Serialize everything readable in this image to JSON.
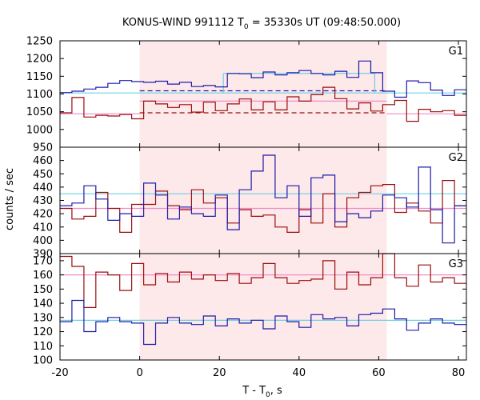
{
  "chart_data": {
    "type": "line",
    "title_main": "KONUS-WIND 991112 T",
    "title_sub": "0",
    "title_rest": " = 35330s UT (09:48:50.000)",
    "xlabel_main": "T - T",
    "xlabel_sub": "0",
    "xlabel_rest": ", s",
    "ylabel": "counts / sec",
    "xlim": [
      -20,
      82
    ],
    "xticks": [
      "-20",
      "0",
      "20",
      "40",
      "60",
      "80"
    ],
    "shade_range": [
      0,
      62
    ],
    "colors": {
      "blue": "#1c1ca8",
      "red": "#9b0d0d",
      "cyan": "#6ed0e0",
      "pink": "#f08cc8",
      "shade": "#fde8ea"
    },
    "panels": [
      {
        "label": "G1",
        "ylim": [
          950,
          1250
        ],
        "yticks": [
          "950",
          "1000",
          "1050",
          "1100",
          "1150",
          "1200",
          "1250"
        ],
        "x_edges": [
          -20,
          -17,
          -14,
          -11,
          -8,
          -5,
          -2,
          1,
          4,
          7,
          10,
          13,
          16,
          19,
          22,
          25,
          28,
          31,
          34,
          37,
          40,
          43,
          46,
          49,
          52,
          55,
          58,
          61,
          64,
          67,
          70,
          73,
          76,
          79,
          82
        ],
        "blue": [
          1104,
          1108,
          1114,
          1119,
          1130,
          1138,
          1135,
          1133,
          1136,
          1128,
          1133,
          1121,
          1124,
          1120,
          1158,
          1157,
          1146,
          1162,
          1154,
          1160,
          1166,
          1158,
          1154,
          1164,
          1147,
          1193,
          1160,
          1108,
          1091,
          1137,
          1132,
          1111,
          1096,
          1112
        ],
        "red": [
          1047,
          1090,
          1035,
          1040,
          1038,
          1042,
          1030,
          1080,
          1072,
          1062,
          1070,
          1049,
          1077,
          1053,
          1072,
          1086,
          1055,
          1078,
          1055,
          1092,
          1080,
          1098,
          1119,
          1087,
          1058,
          1075,
          1052,
          1070,
          1082,
          1023,
          1057,
          1050,
          1053,
          1040
        ],
        "bg": [
          {
            "x": [
              -20,
              82
            ],
            "y": [
              1103,
              1103
            ],
            "style": "cyan"
          },
          {
            "x": [
              -20,
              0
            ],
            "y": [
              1044,
              1044
            ],
            "style": "pink"
          },
          {
            "x": [
              0,
              62
            ],
            "y": [
              1080,
              1080
            ],
            "style": "pink"
          },
          {
            "x": [
              62,
              82
            ],
            "y": [
              1044,
              1044
            ],
            "style": "pink"
          },
          {
            "x": [
              0,
              62
            ],
            "y": [
              1047,
              1047
            ],
            "style": "red-dash"
          },
          {
            "x": [
              0,
              62
            ],
            "y": [
              1109,
              1109
            ],
            "style": "blue-dash"
          },
          {
            "x": [
              21,
              59
            ],
            "y": [
              1158,
              1158
            ],
            "style": "cyan"
          },
          {
            "x": [
              21,
              21
            ],
            "y": [
              1103,
              1158
            ],
            "style": "cyan"
          },
          {
            "x": [
              59,
              59
            ],
            "y": [
              1103,
              1158
            ],
            "style": "cyan"
          }
        ]
      },
      {
        "label": "G2",
        "ylim": [
          390,
          470
        ],
        "yticks": [
          "390",
          "400",
          "410",
          "420",
          "430",
          "440",
          "450",
          "460"
        ],
        "x_edges": [
          -20,
          -17,
          -14,
          -11,
          -8,
          -5,
          -2,
          1,
          4,
          7,
          10,
          13,
          16,
          19,
          22,
          25,
          28,
          31,
          34,
          37,
          40,
          43,
          46,
          49,
          52,
          55,
          58,
          61,
          64,
          67,
          70,
          73,
          76,
          79,
          82
        ],
        "blue": [
          426,
          428,
          441,
          431,
          415,
          420,
          418,
          443,
          434,
          416,
          425,
          420,
          418,
          434,
          408,
          438,
          452,
          464,
          432,
          441,
          418,
          447,
          449,
          414,
          420,
          417,
          422,
          434,
          432,
          425,
          455,
          423,
          398,
          426
        ],
        "red": [
          424,
          416,
          418,
          436,
          424,
          406,
          427,
          427,
          437,
          426,
          423,
          438,
          428,
          432,
          413,
          423,
          418,
          419,
          410,
          406,
          423,
          413,
          435,
          410,
          432,
          436,
          441,
          442,
          421,
          428,
          422,
          413,
          445,
          426
        ],
        "bg": [
          {
            "x": [
              -20,
              82
            ],
            "y": [
              435,
              435
            ],
            "style": "cyan"
          },
          {
            "x": [
              -20,
              82
            ],
            "y": [
              424,
              424
            ],
            "style": "pink"
          }
        ]
      },
      {
        "label": "G3",
        "ylim": [
          100,
          175
        ],
        "yticks": [
          "100",
          "110",
          "120",
          "130",
          "140",
          "150",
          "160",
          "170"
        ],
        "x_edges": [
          -20,
          -17,
          -14,
          -11,
          -8,
          -5,
          -2,
          1,
          4,
          7,
          10,
          13,
          16,
          19,
          22,
          25,
          28,
          31,
          34,
          37,
          40,
          43,
          46,
          49,
          52,
          55,
          58,
          61,
          64,
          67,
          70,
          73,
          76,
          79,
          82
        ],
        "blue": [
          127,
          142,
          120,
          127,
          130,
          127,
          126,
          111,
          126,
          130,
          126,
          125,
          131,
          124,
          129,
          126,
          128,
          122,
          131,
          127,
          123,
          132,
          129,
          130,
          124,
          132,
          133,
          136,
          129,
          121,
          126,
          129,
          126,
          125
        ],
        "red": [
          173,
          166,
          137,
          162,
          160,
          149,
          168,
          153,
          161,
          155,
          162,
          157,
          160,
          156,
          161,
          154,
          158,
          168,
          158,
          154,
          156,
          157,
          170,
          150,
          162,
          153,
          158,
          175,
          158,
          152,
          167,
          155,
          158,
          154
        ],
        "bg": [
          {
            "x": [
              -20,
              82
            ],
            "y": [
              128,
              128
            ],
            "style": "cyan"
          },
          {
            "x": [
              -20,
              82
            ],
            "y": [
              160,
              160
            ],
            "style": "pink"
          }
        ]
      }
    ]
  }
}
